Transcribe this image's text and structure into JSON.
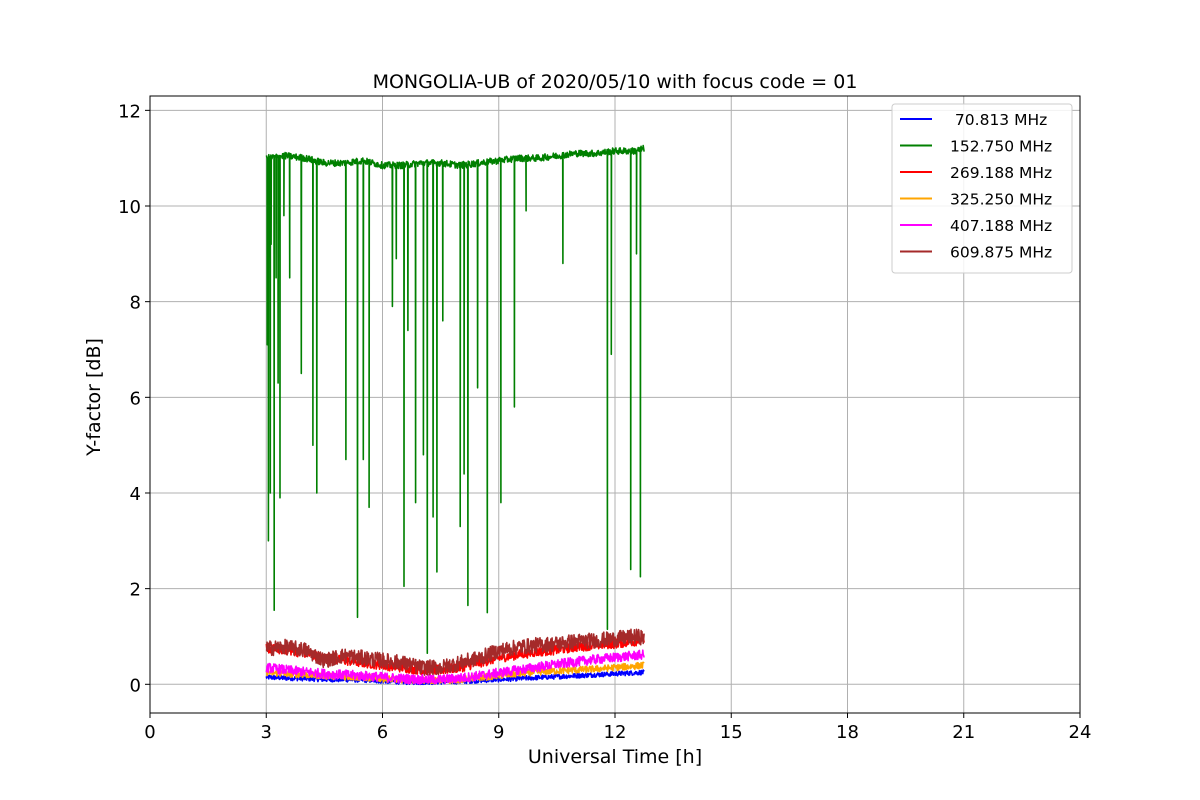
{
  "chart_data": {
    "type": "line",
    "title": "MONGOLIA-UB of 2020/05/10 with focus code = 01",
    "xlabel": "Universal Time [h]",
    "ylabel": "Y-factor [dB]",
    "xlim": [
      0,
      24
    ],
    "ylim": [
      -0.6,
      12.3
    ],
    "xticks": [
      0,
      3,
      6,
      9,
      12,
      15,
      18,
      21,
      24
    ],
    "xtick_labels": [
      "0",
      "3",
      "6",
      "9",
      "12",
      "15",
      "18",
      "21",
      "24"
    ],
    "yticks": [
      0,
      2,
      4,
      6,
      8,
      10,
      12
    ],
    "ytick_labels": [
      "0",
      "2",
      "4",
      "6",
      "8",
      "10",
      "12"
    ],
    "grid": true,
    "legend_position": "top-right",
    "series": [
      {
        "name": " 70.813 MHz",
        "color": "#0000ff",
        "x": [
          3.0,
          3.5,
          4.0,
          4.5,
          5.0,
          5.5,
          6.0,
          6.5,
          7.0,
          7.5,
          8.0,
          8.5,
          9.0,
          9.5,
          10.0,
          10.5,
          11.0,
          11.5,
          12.0,
          12.5,
          12.75
        ],
        "y": [
          0.15,
          0.13,
          0.12,
          0.1,
          0.1,
          0.09,
          0.07,
          0.05,
          0.04,
          0.05,
          0.06,
          0.08,
          0.1,
          0.12,
          0.14,
          0.16,
          0.18,
          0.2,
          0.22,
          0.24,
          0.25
        ]
      },
      {
        "name": "152.750 MHz",
        "color": "#008000",
        "x": [
          3.0,
          3.5,
          4.0,
          4.5,
          5.0,
          5.5,
          6.0,
          6.5,
          7.0,
          7.5,
          8.0,
          8.5,
          9.0,
          9.5,
          10.0,
          10.5,
          11.0,
          11.5,
          12.0,
          12.5,
          12.75
        ],
        "y": [
          11.0,
          11.05,
          11.0,
          10.9,
          10.9,
          10.95,
          10.85,
          10.85,
          10.9,
          10.9,
          10.85,
          10.9,
          10.95,
          11.0,
          11.0,
          11.05,
          11.1,
          11.1,
          11.15,
          11.15,
          11.2
        ],
        "dips": [
          [
            3.02,
            7.1
          ],
          [
            3.05,
            3.0
          ],
          [
            3.1,
            4.0
          ],
          [
            3.12,
            9.2
          ],
          [
            3.2,
            1.55
          ],
          [
            3.25,
            8.5
          ],
          [
            3.3,
            6.3
          ],
          [
            3.35,
            3.9
          ],
          [
            3.45,
            9.8
          ],
          [
            3.6,
            8.5
          ],
          [
            3.9,
            6.5
          ],
          [
            4.2,
            5.0
          ],
          [
            4.3,
            4.0
          ],
          [
            5.05,
            4.7
          ],
          [
            5.35,
            1.4
          ],
          [
            5.5,
            4.7
          ],
          [
            5.65,
            3.7
          ],
          [
            6.25,
            7.9
          ],
          [
            6.35,
            8.9
          ],
          [
            6.55,
            2.05
          ],
          [
            6.65,
            7.4
          ],
          [
            6.85,
            3.8
          ],
          [
            7.05,
            4.8
          ],
          [
            7.15,
            0.65
          ],
          [
            7.3,
            3.5
          ],
          [
            7.4,
            2.35
          ],
          [
            7.55,
            7.6
          ],
          [
            8.0,
            3.3
          ],
          [
            8.1,
            4.4
          ],
          [
            8.2,
            1.65
          ],
          [
            8.45,
            6.2
          ],
          [
            8.7,
            1.5
          ],
          [
            9.05,
            3.8
          ],
          [
            9.4,
            5.8
          ],
          [
            9.7,
            9.9
          ],
          [
            10.65,
            8.8
          ],
          [
            11.8,
            1.15
          ],
          [
            11.9,
            6.9
          ],
          [
            12.4,
            2.4
          ],
          [
            12.55,
            9.0
          ],
          [
            12.65,
            2.25
          ]
        ]
      },
      {
        "name": "269.188 MHz",
        "color": "#ff0000",
        "x": [
          3.0,
          3.5,
          4.0,
          4.5,
          5.0,
          5.5,
          6.0,
          6.5,
          7.0,
          7.5,
          8.0,
          8.5,
          9.0,
          9.5,
          10.0,
          10.5,
          11.0,
          11.5,
          12.0,
          12.5,
          12.75
        ],
        "y": [
          0.75,
          0.72,
          0.65,
          0.55,
          0.5,
          0.45,
          0.4,
          0.35,
          0.3,
          0.3,
          0.35,
          0.45,
          0.55,
          0.62,
          0.68,
          0.72,
          0.78,
          0.82,
          0.85,
          0.9,
          0.92
        ]
      },
      {
        "name": "325.250 MHz",
        "color": "#ffa500",
        "x": [
          3.0,
          3.5,
          4.0,
          4.5,
          5.0,
          5.5,
          6.0,
          6.5,
          7.0,
          7.5,
          8.0,
          8.5,
          9.0,
          9.5,
          10.0,
          10.5,
          11.0,
          11.5,
          12.0,
          12.5,
          12.75
        ],
        "y": [
          0.25,
          0.22,
          0.2,
          0.18,
          0.16,
          0.14,
          0.12,
          0.1,
          0.08,
          0.08,
          0.1,
          0.14,
          0.18,
          0.22,
          0.26,
          0.28,
          0.3,
          0.32,
          0.35,
          0.38,
          0.4
        ]
      },
      {
        "name": "407.188 MHz",
        "color": "#ff00ff",
        "x": [
          3.0,
          3.5,
          4.0,
          4.5,
          5.0,
          5.5,
          6.0,
          6.5,
          7.0,
          7.5,
          8.0,
          8.5,
          9.0,
          9.5,
          10.0,
          10.5,
          11.0,
          11.5,
          12.0,
          12.5,
          12.75
        ],
        "y": [
          0.35,
          0.3,
          0.26,
          0.22,
          0.2,
          0.18,
          0.15,
          0.12,
          0.1,
          0.1,
          0.13,
          0.18,
          0.24,
          0.3,
          0.36,
          0.42,
          0.47,
          0.52,
          0.56,
          0.6,
          0.62
        ]
      },
      {
        "name": "609.875 MHz",
        "color": "#a52a2a",
        "x": [
          3.0,
          3.5,
          4.0,
          4.5,
          5.0,
          5.5,
          6.0,
          6.5,
          7.0,
          7.5,
          8.0,
          8.5,
          9.0,
          9.5,
          10.0,
          10.5,
          11.0,
          11.5,
          12.0,
          12.5,
          12.75
        ],
        "y": [
          0.75,
          0.78,
          0.72,
          0.5,
          0.6,
          0.55,
          0.5,
          0.45,
          0.35,
          0.35,
          0.45,
          0.55,
          0.7,
          0.78,
          0.82,
          0.85,
          0.9,
          0.92,
          0.95,
          1.0,
          0.98
        ]
      }
    ]
  }
}
